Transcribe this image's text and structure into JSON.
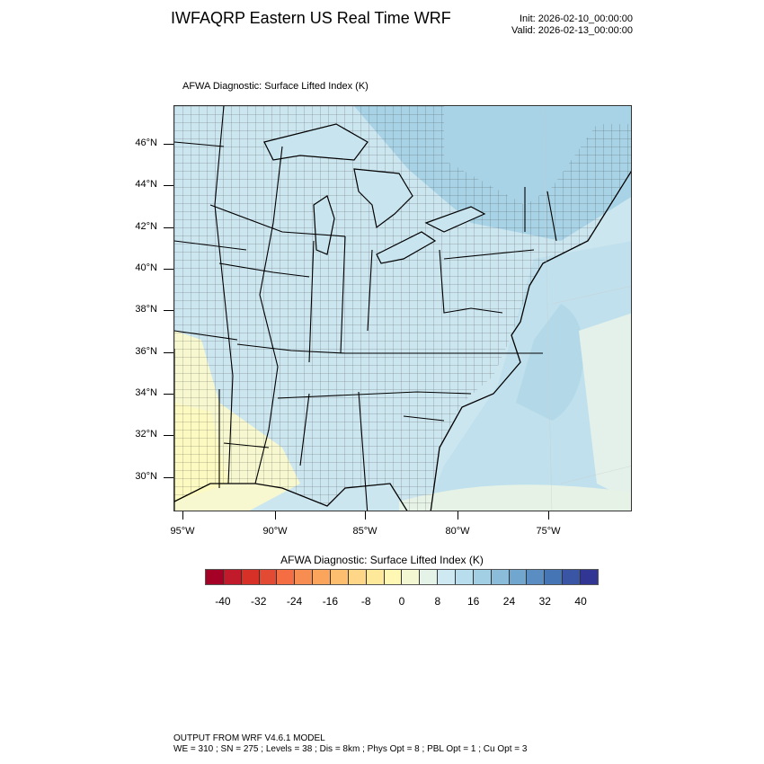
{
  "header": {
    "title": "IWFAQRP Eastern US Real Time WRF",
    "init": "Init: 2026-02-10_00:00:00",
    "valid": "Valid: 2026-02-13_00:00:00"
  },
  "plot": {
    "subtitle": "AFWA Diagnostic: Surface Lifted Index   (K)",
    "lat_labels": [
      "46°N",
      "44°N",
      "42°N",
      "40°N",
      "38°N",
      "36°N",
      "34°N",
      "32°N",
      "30°N"
    ],
    "lon_labels": [
      "95°W",
      "90°W",
      "85°W",
      "80°W",
      "75°W"
    ]
  },
  "colorbar": {
    "title": "AFWA Diagnostic: Surface Lifted Index  (K)",
    "colors": [
      "#a50026",
      "#c01a2b",
      "#d73027",
      "#e34a33",
      "#f46d43",
      "#f88d52",
      "#fba55c",
      "#fdbe6f",
      "#fed687",
      "#fee99a",
      "#fff8b4",
      "#f3f8d2",
      "#e4f2e8",
      "#cfe9f2",
      "#b8dded",
      "#a3cfe4",
      "#8bbcda",
      "#71a6cf",
      "#5a8ec2",
      "#4575b4",
      "#3a55a3",
      "#313695"
    ],
    "labels": [
      "-40",
      "-32",
      "-24",
      "-16",
      "-8",
      "0",
      "8",
      "16",
      "24",
      "32",
      "40"
    ],
    "values": [
      -40,
      -32,
      -24,
      -16,
      -8,
      0,
      8,
      16,
      24,
      32,
      40
    ]
  },
  "footer": {
    "line1": "OUTPUT FROM WRF V4.6.1 MODEL",
    "line2": "WE = 310 ; SN = 275 ; Levels = 38 ; Dis = 8km ; Phys Opt = 8 ; PBL Opt = 1 ; Cu Opt = 3"
  }
}
